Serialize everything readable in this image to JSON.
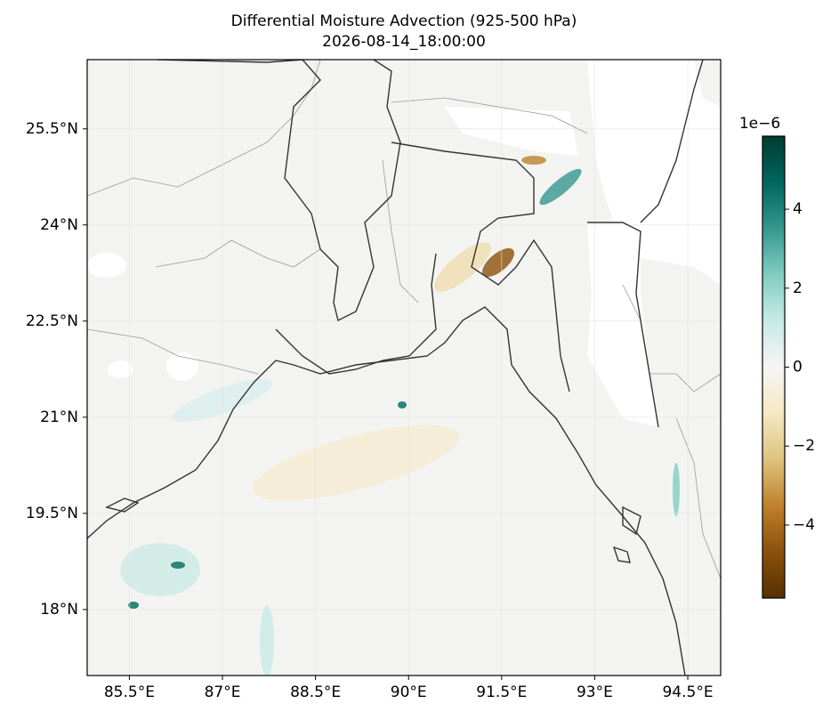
{
  "chart_data": {
    "type": "map",
    "title": "Differential Moisture Advection (925-500 hPa)",
    "subtitle": "2026-08-14_18:00:00",
    "xlim": [
      84.82,
      95.03
    ],
    "ylim": [
      16.97,
      26.58
    ],
    "xticks": [
      {
        "value": 85.5,
        "label": "85.5°E"
      },
      {
        "value": 87,
        "label": "87°E"
      },
      {
        "value": 88.5,
        "label": "88.5°E"
      },
      {
        "value": 90,
        "label": "90°E"
      },
      {
        "value": 91.5,
        "label": "91.5°E"
      },
      {
        "value": 93,
        "label": "93°E"
      },
      {
        "value": 94.5,
        "label": "94.5°E"
      }
    ],
    "yticks": [
      {
        "value": 25.5,
        "label": "25.5°N"
      },
      {
        "value": 24,
        "label": "24°N"
      },
      {
        "value": 22.5,
        "label": "22.5°N"
      },
      {
        "value": 21,
        "label": "21°N"
      },
      {
        "value": 19.5,
        "label": "19.5°N"
      },
      {
        "value": 18,
        "label": "18°N"
      }
    ],
    "colorbar": {
      "multiplier": "1e−6",
      "lim": [
        -5.85,
        5.85
      ],
      "ticks": [
        {
          "value": -4,
          "label": "−4"
        },
        {
          "value": -2,
          "label": "−2"
        },
        0,
        2,
        4
      ],
      "colors": [
        "#543005",
        "#8c510a",
        "#bf812d",
        "#dfc27d",
        "#f6e8c3",
        "#f5f5f5",
        "#c7eae5",
        "#80cdc1",
        "#35978f",
        "#01665e",
        "#003c30"
      ]
    }
  }
}
